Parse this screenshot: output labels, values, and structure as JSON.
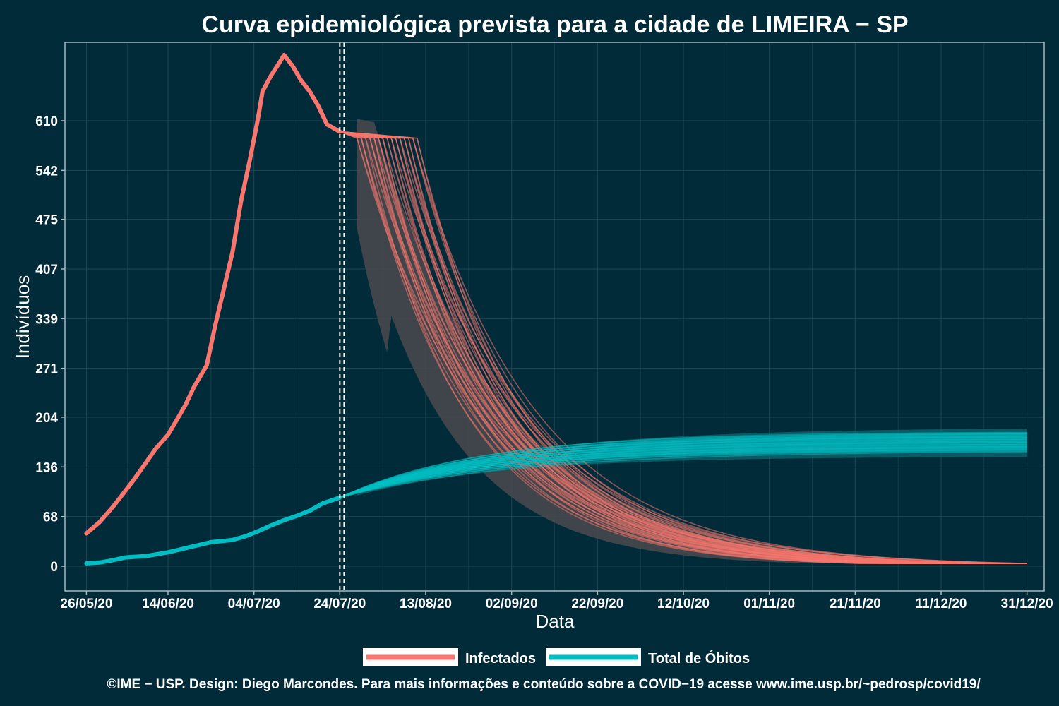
{
  "chart_data": {
    "type": "line",
    "title": "Curva epidemiológica prevista para a cidade de LIMEIRA − SP",
    "xlabel": "Data",
    "ylabel": "Indivíduos",
    "ylim": [
      0,
      710
    ],
    "yticks": [
      0,
      68,
      136,
      204,
      271,
      339,
      407,
      475,
      542,
      610
    ],
    "x_start": "2020-05-21",
    "x_end": "2021-01-04",
    "xticks": [
      {
        "date": "2020-05-26",
        "label": "26/05/20"
      },
      {
        "date": "2020-06-14",
        "label": "14/06/20"
      },
      {
        "date": "2020-07-04",
        "label": "04/07/20"
      },
      {
        "date": "2020-07-24",
        "label": "24/07/20"
      },
      {
        "date": "2020-08-13",
        "label": "13/08/20"
      },
      {
        "date": "2020-09-02",
        "label": "02/09/20"
      },
      {
        "date": "2020-09-22",
        "label": "22/09/20"
      },
      {
        "date": "2020-10-12",
        "label": "12/10/20"
      },
      {
        "date": "2020-11-01",
        "label": "01/11/20"
      },
      {
        "date": "2020-11-21",
        "label": "21/11/20"
      },
      {
        "date": "2020-12-11",
        "label": "11/12/20"
      },
      {
        "date": "2020-12-31",
        "label": "31/12/20"
      }
    ],
    "vlines": [
      "2020-07-24",
      "2020-07-25"
    ],
    "grid": true,
    "legend_position": "bottom",
    "series": [
      {
        "name": "Infectados",
        "color": "#f8766d",
        "observed": [
          {
            "x": "2020-05-26",
            "y": 45
          },
          {
            "x": "2020-05-29",
            "y": 60
          },
          {
            "x": "2020-06-01",
            "y": 80
          },
          {
            "x": "2020-06-03",
            "y": 95
          },
          {
            "x": "2020-06-06",
            "y": 118
          },
          {
            "x": "2020-06-09",
            "y": 143
          },
          {
            "x": "2020-06-11",
            "y": 160
          },
          {
            "x": "2020-06-14",
            "y": 180
          },
          {
            "x": "2020-06-16",
            "y": 200
          },
          {
            "x": "2020-06-18",
            "y": 220
          },
          {
            "x": "2020-06-20",
            "y": 245
          },
          {
            "x": "2020-06-23",
            "y": 275
          },
          {
            "x": "2020-06-25",
            "y": 330
          },
          {
            "x": "2020-06-27",
            "y": 380
          },
          {
            "x": "2020-06-29",
            "y": 430
          },
          {
            "x": "2020-07-01",
            "y": 500
          },
          {
            "x": "2020-07-03",
            "y": 555
          },
          {
            "x": "2020-07-05",
            "y": 615
          },
          {
            "x": "2020-07-06",
            "y": 650
          },
          {
            "x": "2020-07-08",
            "y": 672
          },
          {
            "x": "2020-07-10",
            "y": 690
          },
          {
            "x": "2020-07-11",
            "y": 700
          },
          {
            "x": "2020-07-13",
            "y": 685
          },
          {
            "x": "2020-07-15",
            "y": 665
          },
          {
            "x": "2020-07-17",
            "y": 650
          },
          {
            "x": "2020-07-19",
            "y": 630
          },
          {
            "x": "2020-07-21",
            "y": 605
          },
          {
            "x": "2020-07-24",
            "y": 595
          }
        ],
        "forecast": {
          "start": "2020-07-24",
          "end": "2020-12-31",
          "y0": 595,
          "tail_value": 4,
          "median_decay_rate": 0.041,
          "median_plateau_days": 12
        }
      },
      {
        "name": "Total de Óbitos",
        "color": "#00bfc4",
        "observed": [
          {
            "x": "2020-05-26",
            "y": 4
          },
          {
            "x": "2020-05-29",
            "y": 5
          },
          {
            "x": "2020-06-01",
            "y": 8
          },
          {
            "x": "2020-06-04",
            "y": 12
          },
          {
            "x": "2020-06-09",
            "y": 14
          },
          {
            "x": "2020-06-14",
            "y": 19
          },
          {
            "x": "2020-06-19",
            "y": 26
          },
          {
            "x": "2020-06-24",
            "y": 33
          },
          {
            "x": "2020-06-29",
            "y": 36
          },
          {
            "x": "2020-07-02",
            "y": 41
          },
          {
            "x": "2020-07-05",
            "y": 48
          },
          {
            "x": "2020-07-08",
            "y": 56
          },
          {
            "x": "2020-07-11",
            "y": 63
          },
          {
            "x": "2020-07-14",
            "y": 69
          },
          {
            "x": "2020-07-17",
            "y": 76
          },
          {
            "x": "2020-07-20",
            "y": 86
          },
          {
            "x": "2020-07-24",
            "y": 94
          }
        ],
        "forecast": {
          "start": "2020-07-24",
          "end": "2020-12-31",
          "y0": 94,
          "asymptote_median": 168,
          "asymptote_range": [
            150,
            190
          ],
          "growth_rate": 0.028
        }
      }
    ]
  },
  "legend": {
    "items": [
      {
        "label": "Infectados",
        "color": "#f8766d"
      },
      {
        "label": "Total de Óbitos",
        "color": "#00bfc4"
      }
    ]
  },
  "caption": "©IME − USP. Design: Diego Marcondes. Para mais informações e conteúdo sobre a COVID−19 acesse www.ime.usp.br/~pedrosp/covid19/",
  "colors": {
    "background": "#022b3a",
    "band": "#4a4a4e",
    "axis": "#a8b8bf",
    "grid": "#1e4654"
  }
}
